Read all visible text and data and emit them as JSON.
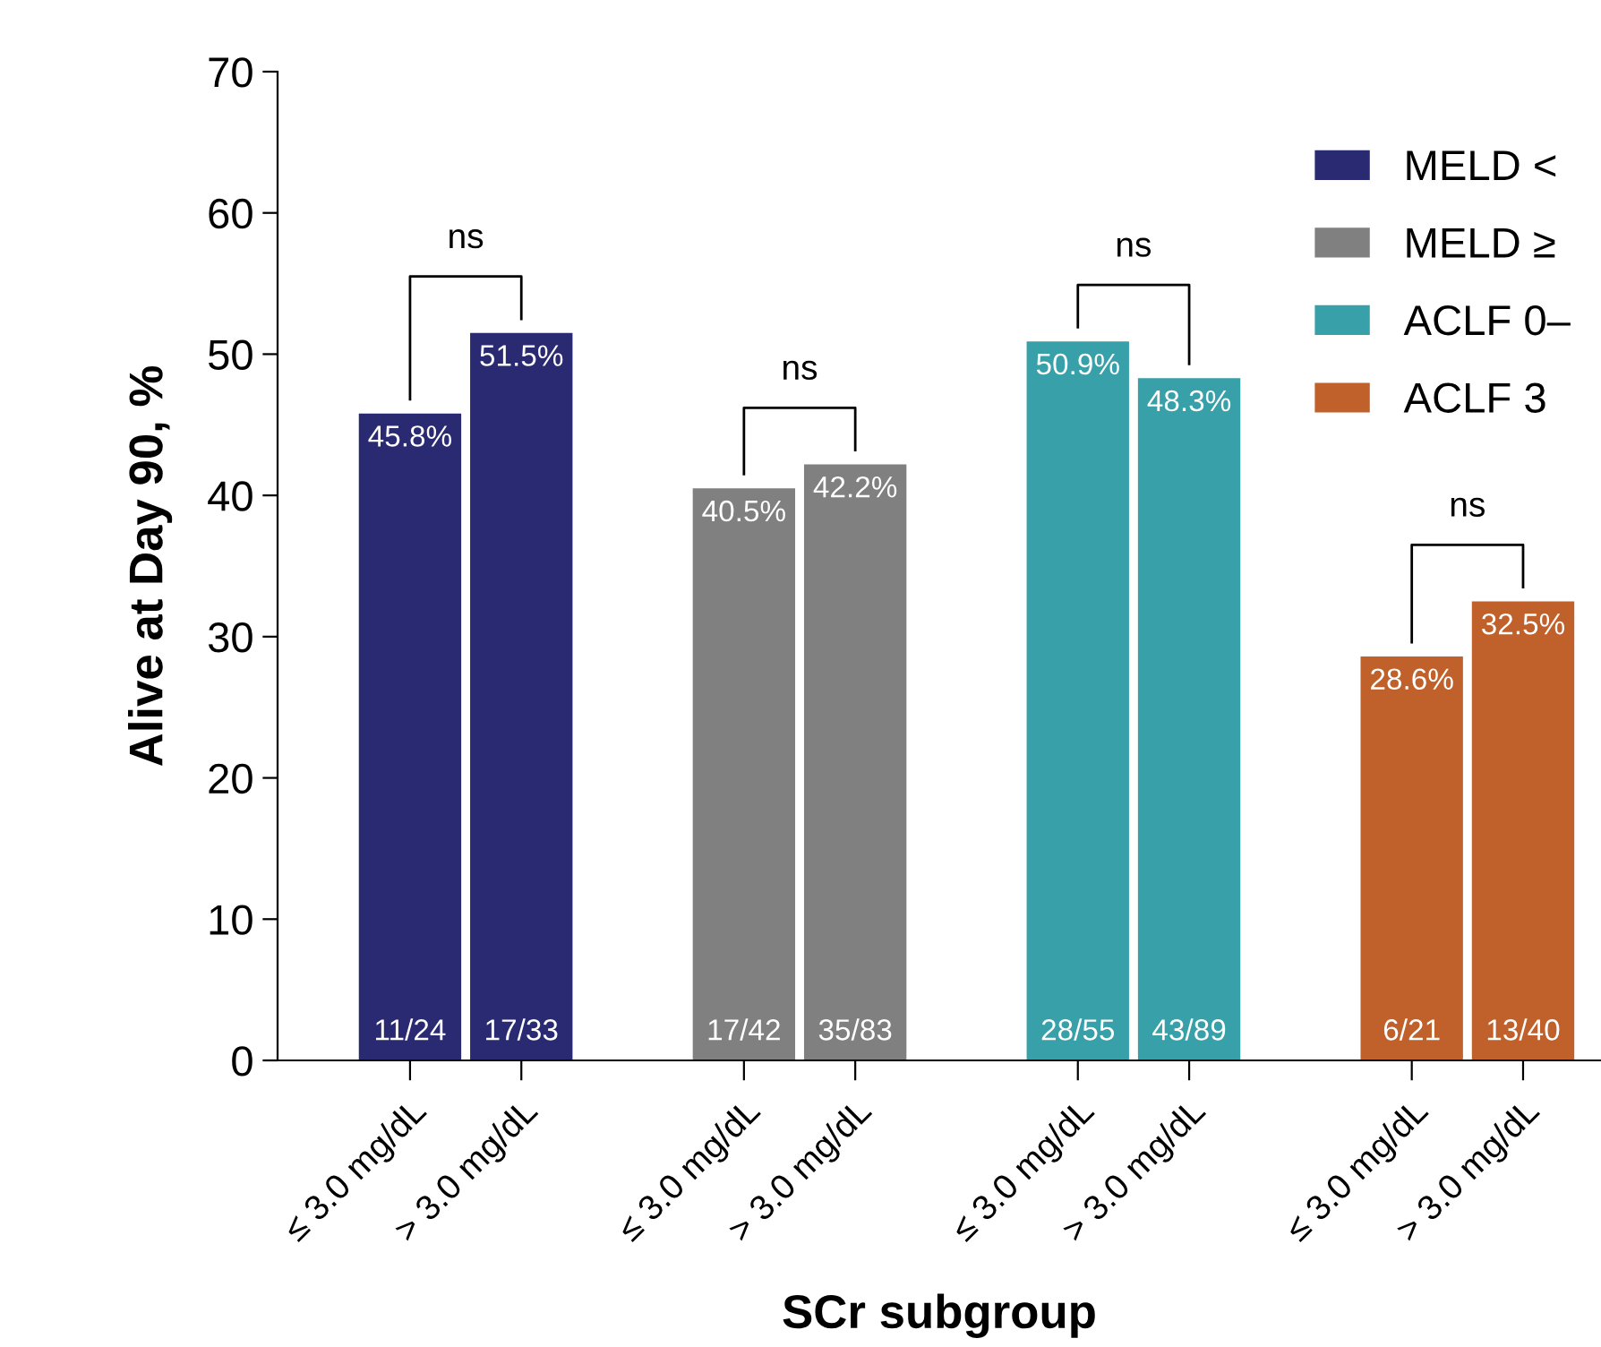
{
  "chart_data": {
    "type": "bar",
    "ylabel": "Alive at Day 90, %",
    "xlabel": "SCr subgroup",
    "categories": [
      "≤ 3.0 mg/dL",
      "> 3.0 mg/dL",
      null,
      "≤ 3.0 mg/dL",
      "> 3.0 mg/dL",
      null,
      "≤ 3.0 mg/dL",
      "> 3.0 mg/dL",
      null,
      "≤ 3.0 mg/dL",
      "> 3.0 mg/dL"
    ],
    "series": [
      {
        "name": "MELD <",
        "color": "#2a2a72",
        "values": [
          45.8,
          51.5,
          null,
          null,
          null,
          null,
          null,
          null,
          null,
          null,
          null
        ],
        "value_labels": [
          "45.8%",
          "51.5%",
          null,
          null,
          null,
          null,
          null,
          null,
          null,
          null,
          null
        ]
      },
      {
        "name": "MELD ≥",
        "color": "#808080",
        "values": [
          null,
          null,
          null,
          40.5,
          42.2,
          null,
          null,
          null,
          null,
          null,
          null
        ],
        "value_labels": [
          null,
          null,
          null,
          "40.5%",
          "42.2%",
          null,
          null,
          null,
          null,
          null,
          null
        ]
      },
      {
        "name": "ACLF 0–",
        "color": "#38a0a8",
        "values": [
          null,
          null,
          null,
          null,
          null,
          null,
          50.9,
          48.3,
          null,
          null,
          null
        ],
        "value_labels": [
          null,
          null,
          null,
          null,
          null,
          null,
          "50.9%",
          "48.3%",
          null,
          null,
          null
        ]
      },
      {
        "name": "ACLF 3",
        "color": "#c0602a",
        "values": [
          null,
          null,
          null,
          null,
          null,
          null,
          null,
          null,
          null,
          28.6,
          32.5
        ],
        "value_labels": [
          null,
          null,
          null,
          null,
          null,
          null,
          null,
          null,
          null,
          "28.6%",
          "32.5%"
        ]
      }
    ],
    "annotations": [
      "11/24",
      "17/33",
      "17/42",
      "35/83",
      "28/55",
      "43/89",
      "6/21",
      "13/40",
      "ns",
      "ns",
      "ns",
      "ns"
    ],
    "ylim": [
      0,
      70
    ],
    "yticks": [
      0,
      10,
      20,
      30,
      40,
      50,
      60,
      70
    ],
    "grid": false,
    "legend": "top right"
  }
}
